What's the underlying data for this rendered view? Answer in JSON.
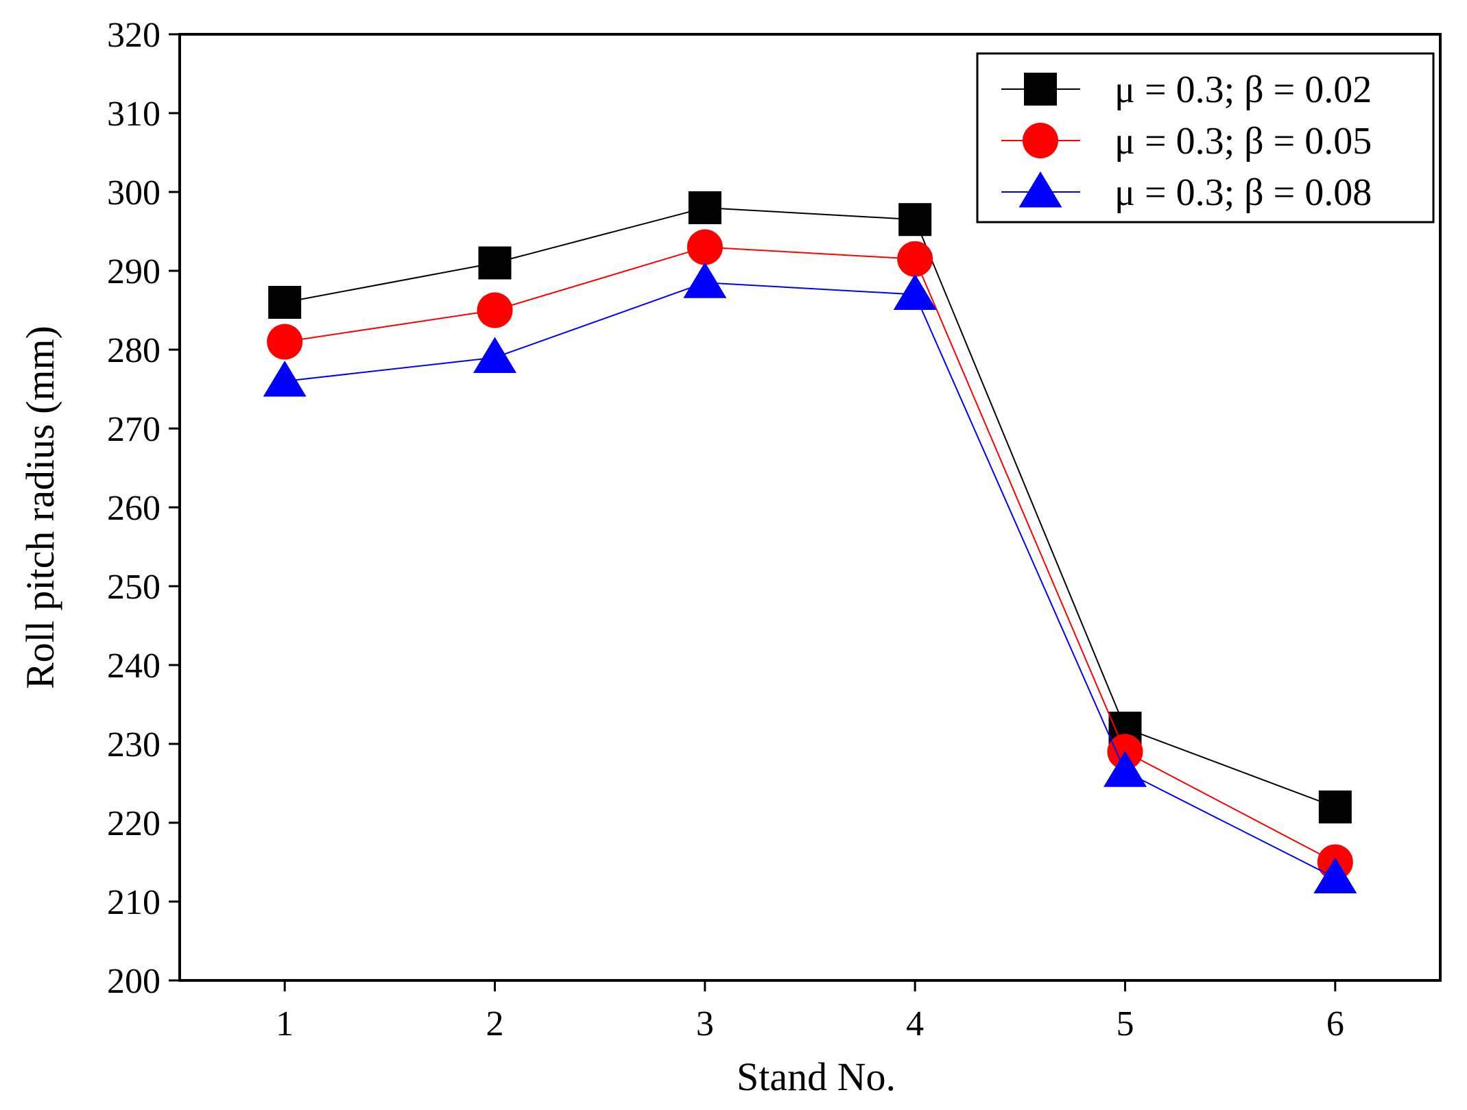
{
  "chart_data": {
    "type": "line",
    "title": "",
    "xlabel": "Stand No.",
    "ylabel": "Roll pitch radius (mm)",
    "categories": [
      "1",
      "2",
      "3",
      "4",
      "5",
      "6"
    ],
    "x": [
      1,
      2,
      3,
      4,
      5,
      6
    ],
    "xlim": [
      0.5,
      6.5
    ],
    "ylim": [
      200,
      320
    ],
    "yticks": [
      "200",
      "210",
      "220",
      "230",
      "240",
      "250",
      "260",
      "270",
      "280",
      "290",
      "300",
      "310",
      "320"
    ],
    "grid": false,
    "legend_position": "top-right",
    "series": [
      {
        "name": "μ = 0.3; β = 0.02",
        "color": "#000000",
        "marker": "square",
        "values": [
          286,
          291,
          298,
          296.5,
          232,
          222
        ]
      },
      {
        "name": "μ = 0.3; β = 0.05",
        "color": "#ff0000",
        "marker": "circle",
        "values": [
          281,
          285,
          293,
          291.5,
          229,
          215
        ]
      },
      {
        "name": "μ = 0.3; β = 0.08",
        "color": "#0000ff",
        "marker": "triangle",
        "values": [
          276,
          279,
          288.5,
          287,
          226.5,
          213
        ]
      }
    ]
  }
}
